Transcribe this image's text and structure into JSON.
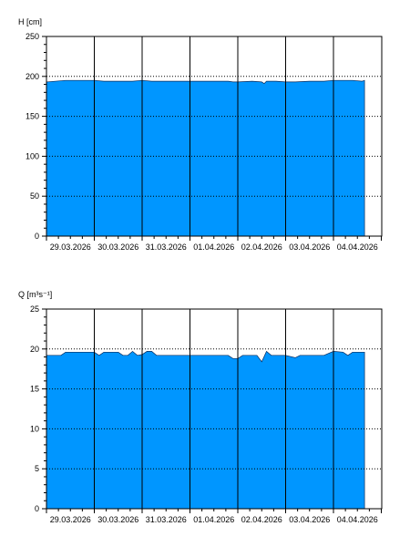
{
  "chart_data": [
    {
      "type": "area",
      "ylabel": "H [cm]",
      "ylim": [
        0,
        250
      ],
      "yticks": [
        "0",
        "50",
        "100",
        "150",
        "200",
        "250"
      ],
      "ytick_values": [
        0,
        50,
        100,
        150,
        200,
        250
      ],
      "xlabels": [
        "29.03.2026",
        "30.03.2026",
        "31.03.2026",
        "01.04.2026",
        "02.04.2026",
        "03.04.2026",
        "04.04.2026"
      ],
      "x_range_days": [
        0,
        7.3
      ],
      "dotted_gridlines": [
        50,
        100,
        150,
        200
      ],
      "fill_color": "#0096ff",
      "series": [
        {
          "x": [
            0,
            0.4,
            1.0,
            1.2,
            1.5,
            1.8,
            2.0,
            2.2,
            2.5,
            3.0,
            3.5,
            3.8,
            3.9,
            4.0,
            4.3,
            4.5,
            4.55,
            4.6,
            4.8,
            5.0,
            5.2,
            5.5,
            5.8,
            6.0,
            6.2,
            6.4,
            6.6,
            6.65
          ],
          "y": [
            193,
            195,
            195,
            194,
            194,
            194,
            195,
            194,
            194,
            194,
            194,
            194,
            193,
            193,
            194,
            193,
            191,
            194,
            194,
            193,
            193,
            194,
            194,
            195,
            195,
            195,
            194,
            195
          ]
        }
      ]
    },
    {
      "type": "area",
      "ylabel": "Q [m³s⁻¹]",
      "ylim": [
        0,
        25
      ],
      "yticks": [
        "0",
        "5",
        "10",
        "15",
        "20",
        "25"
      ],
      "ytick_values": [
        0,
        5,
        10,
        15,
        20,
        25
      ],
      "xlabels": [
        "29.03.2026",
        "30.03.2026",
        "31.03.2026",
        "01.04.2026",
        "02.04.2026",
        "03.04.2026",
        "04.04.2026"
      ],
      "x_range_days": [
        0,
        7.3
      ],
      "dotted_gridlines": [
        5,
        10,
        15,
        20
      ],
      "fill_color": "#0096ff",
      "series": [
        {
          "x": [
            0,
            0.3,
            0.4,
            0.9,
            1.0,
            1.1,
            1.2,
            1.5,
            1.6,
            1.7,
            1.8,
            1.9,
            2.0,
            2.1,
            2.2,
            2.3,
            2.5,
            3.0,
            3.5,
            3.8,
            3.9,
            4.0,
            4.1,
            4.2,
            4.4,
            4.5,
            4.6,
            4.7,
            4.8,
            5.0,
            5.2,
            5.3,
            5.4,
            5.5,
            5.8,
            6.0,
            6.2,
            6.3,
            6.4,
            6.65
          ],
          "y": [
            19.2,
            19.2,
            19.6,
            19.6,
            19.6,
            19.2,
            19.6,
            19.6,
            19.2,
            19.2,
            19.7,
            19.2,
            19.3,
            19.7,
            19.7,
            19.2,
            19.2,
            19.2,
            19.2,
            19.2,
            18.8,
            18.8,
            19.2,
            19.2,
            19.2,
            18.4,
            19.7,
            19.2,
            19.2,
            19.2,
            18.9,
            19.2,
            19.2,
            19.2,
            19.2,
            19.7,
            19.6,
            19.2,
            19.6,
            19.6
          ]
        }
      ]
    }
  ]
}
